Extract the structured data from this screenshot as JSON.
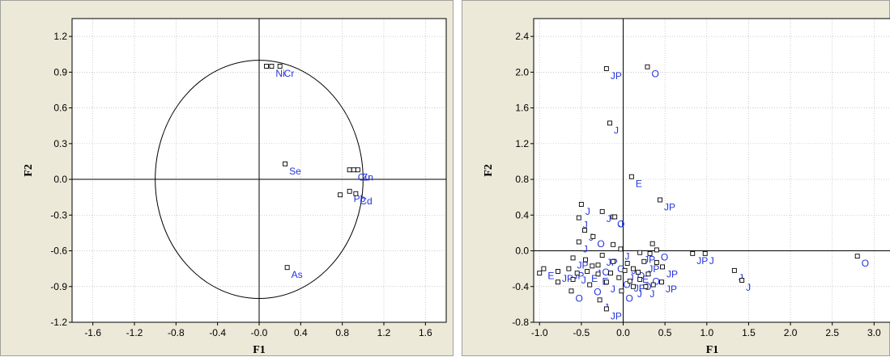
{
  "colors": {
    "label": "#2233dd",
    "marker": "#000000",
    "grid": "#b8b8b8",
    "plot_bg": "#ffffff",
    "panel_bg": "#ece9d8"
  },
  "chart_data": [
    {
      "type": "scatter",
      "title": "",
      "xlabel": "F1",
      "ylabel": "F2",
      "xlim": [
        -1.8,
        1.8
      ],
      "ylim": [
        -1.2,
        1.35
      ],
      "xticks": [
        -1.6,
        -1.2,
        -0.8,
        -0.4,
        -0.0,
        0.4,
        0.8,
        1.2,
        1.6
      ],
      "xtick_labels": [
        "-1.6",
        "-1.2",
        "-0.8",
        "-0.4",
        "-0.0",
        "0.4",
        "0.8",
        "1.2",
        "1.6"
      ],
      "yticks": [
        -1.2,
        -0.9,
        -0.6,
        -0.3,
        0.0,
        0.3,
        0.6,
        0.9,
        1.2
      ],
      "ytick_labels": [
        "-1.2",
        "-0.9",
        "-0.6",
        "-0.3",
        "0.0",
        "0.3",
        "0.6",
        "0.9",
        "1.2"
      ],
      "grid": true,
      "unit_circle": true,
      "points": [
        {
          "x": 0.07,
          "y": 0.95,
          "label": ""
        },
        {
          "x": 0.12,
          "y": 0.95,
          "label": "Ni"
        },
        {
          "x": 0.2,
          "y": 0.95,
          "label": "Cr"
        },
        {
          "x": 0.25,
          "y": 0.13,
          "label": "Se"
        },
        {
          "x": 0.87,
          "y": 0.08,
          "label": ""
        },
        {
          "x": 0.91,
          "y": 0.08,
          "label": "Cu"
        },
        {
          "x": 0.95,
          "y": 0.08,
          "label": "Zn"
        },
        {
          "x": 0.78,
          "y": -0.13,
          "label": ""
        },
        {
          "x": 0.87,
          "y": -0.1,
          "label": "Pb"
        },
        {
          "x": 0.93,
          "y": -0.12,
          "label": "Cd"
        },
        {
          "x": 0.27,
          "y": -0.74,
          "label": "As"
        }
      ]
    },
    {
      "type": "scatter",
      "title": "",
      "xlabel": "F1",
      "ylabel": "F2",
      "xlim": [
        -1.07,
        3.2
      ],
      "ylim": [
        -0.8,
        2.6
      ],
      "xticks": [
        -1.0,
        -0.5,
        0.0,
        0.5,
        1.0,
        1.5,
        2.0,
        2.5,
        3.0
      ],
      "xtick_labels": [
        "-1.0",
        "-0.5",
        "0.0",
        "0.5",
        "1.0",
        "1.5",
        "2.0",
        "2.5",
        "3.0"
      ],
      "yticks": [
        -0.8,
        -0.4,
        0.0,
        0.4,
        0.8,
        1.2,
        1.6,
        2.0,
        2.4
      ],
      "ytick_labels": [
        "-0.8",
        "-0.4",
        "0.0",
        "0.4",
        "0.8",
        "1.2",
        "1.6",
        "2.0",
        "2.4"
      ],
      "grid": true,
      "points": [
        {
          "x": -0.2,
          "y": 2.04,
          "label": "JP"
        },
        {
          "x": 0.29,
          "y": 2.06,
          "label": "O"
        },
        {
          "x": -0.16,
          "y": 1.43,
          "label": "J"
        },
        {
          "x": 0.1,
          "y": 0.83,
          "label": "E"
        },
        {
          "x": 0.44,
          "y": 0.57,
          "label": "JP"
        },
        {
          "x": -0.5,
          "y": 0.52,
          "label": "J"
        },
        {
          "x": -0.53,
          "y": 0.37,
          "label": "J"
        },
        {
          "x": -0.25,
          "y": 0.44,
          "label": "J"
        },
        {
          "x": -0.12,
          "y": 0.38,
          "label": "O"
        },
        {
          "x": -0.1,
          "y": 0.38,
          "label": "J"
        },
        {
          "x": -0.46,
          "y": 0.23,
          "label": "J"
        },
        {
          "x": -0.36,
          "y": 0.16,
          "label": "O"
        },
        {
          "x": -0.53,
          "y": 0.1,
          "label": "J"
        },
        {
          "x": 0.35,
          "y": 0.08,
          "label": ""
        },
        {
          "x": -0.12,
          "y": 0.07,
          "label": ""
        },
        {
          "x": -0.03,
          "y": 0.02,
          "label": "J"
        },
        {
          "x": 0.4,
          "y": 0.01,
          "label": "O"
        },
        {
          "x": 0.2,
          "y": -0.02,
          "label": "JP"
        },
        {
          "x": 0.32,
          "y": -0.03,
          "label": ""
        },
        {
          "x": -0.6,
          "y": -0.08,
          "label": "JP"
        },
        {
          "x": -0.45,
          "y": -0.1,
          "label": ""
        },
        {
          "x": -0.25,
          "y": -0.05,
          "label": "JP"
        },
        {
          "x": -0.3,
          "y": -0.16,
          "label": "O"
        },
        {
          "x": -0.37,
          "y": -0.17,
          "label": "J"
        },
        {
          "x": -0.12,
          "y": -0.12,
          "label": "O"
        },
        {
          "x": 0.05,
          "y": -0.14,
          "label": "J"
        },
        {
          "x": 0.25,
          "y": -0.12,
          "label": "JP"
        },
        {
          "x": 0.4,
          "y": -0.13,
          "label": ""
        },
        {
          "x": 0.83,
          "y": -0.03,
          "label": "JP"
        },
        {
          "x": 0.98,
          "y": -0.03,
          "label": "J"
        },
        {
          "x": -1.0,
          "y": -0.25,
          "label": ""
        },
        {
          "x": -0.95,
          "y": -0.2,
          "label": "E"
        },
        {
          "x": -0.78,
          "y": -0.23,
          "label": "JP"
        },
        {
          "x": -0.65,
          "y": -0.2,
          "label": "JP"
        },
        {
          "x": -0.55,
          "y": -0.25,
          "label": "J"
        },
        {
          "x": -0.43,
          "y": -0.23,
          "label": "E"
        },
        {
          "x": -0.3,
          "y": -0.26,
          "label": "E"
        },
        {
          "x": -0.15,
          "y": -0.25,
          "label": ""
        },
        {
          "x": 0.02,
          "y": -0.22,
          "label": "J"
        },
        {
          "x": 0.12,
          "y": -0.2,
          "label": "O"
        },
        {
          "x": 0.18,
          "y": -0.24,
          "label": "E"
        },
        {
          "x": 0.3,
          "y": -0.26,
          "label": "O"
        },
        {
          "x": 0.47,
          "y": -0.18,
          "label": "JP"
        },
        {
          "x": -0.78,
          "y": -0.35,
          "label": ""
        },
        {
          "x": -0.6,
          "y": -0.32,
          "label": ""
        },
        {
          "x": -0.4,
          "y": -0.38,
          "label": "O"
        },
        {
          "x": -0.2,
          "y": -0.35,
          "label": "J"
        },
        {
          "x": -0.05,
          "y": -0.3,
          "label": "O"
        },
        {
          "x": 0.08,
          "y": -0.34,
          "label": "JP"
        },
        {
          "x": 0.2,
          "y": -0.32,
          "label": "O"
        },
        {
          "x": 0.36,
          "y": -0.38,
          "label": ""
        },
        {
          "x": 0.46,
          "y": -0.35,
          "label": "JP"
        },
        {
          "x": -0.62,
          "y": -0.45,
          "label": "O"
        },
        {
          "x": -0.28,
          "y": -0.55,
          "label": "J"
        },
        {
          "x": -0.02,
          "y": -0.45,
          "label": "O"
        },
        {
          "x": 0.12,
          "y": -0.4,
          "label": "J"
        },
        {
          "x": 0.27,
          "y": -0.4,
          "label": "J"
        },
        {
          "x": -0.2,
          "y": -0.65,
          "label": "JP"
        },
        {
          "x": 1.33,
          "y": -0.22,
          "label": "J"
        },
        {
          "x": 1.42,
          "y": -0.33,
          "label": "J"
        },
        {
          "x": 2.8,
          "y": -0.06,
          "label": "O"
        }
      ]
    }
  ]
}
